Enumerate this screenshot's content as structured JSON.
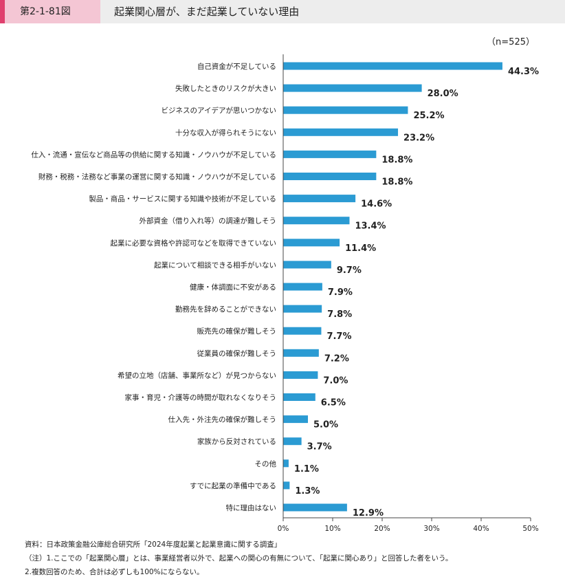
{
  "header": {
    "figure_label": "第2-1-81図",
    "title": "起業関心層が、まだ起業していない理由"
  },
  "sample_size": "（n=525）",
  "chart_data": {
    "type": "bar",
    "orientation": "horizontal",
    "categories": [
      "自己資金が不足している",
      "失敗したときのリスクが大きい",
      "ビジネスのアイデアが思いつかない",
      "十分な収入が得られそうにない",
      "仕入・流通・宣伝など商品等の供給に関する知識・ノウハウが不足している",
      "財務・税務・法務など事業の運営に関する知識・ノウハウが不足している",
      "製品・商品・サービスに関する知識や技術が不足している",
      "外部資金（借り入れ等）の調達が難しそう",
      "起業に必要な資格や許認可などを取得できていない",
      "起業について相談できる相手がいない",
      "健康・体調面に不安がある",
      "勤務先を辞めることができない",
      "販売先の確保が難しそう",
      "従業員の確保が難しそう",
      "希望の立地（店舗、事業所など）が見つからない",
      "家事・育児・介護等の時間が取れなくなりそう",
      "仕入先・外注先の確保が難しそう",
      "家族から反対されている",
      "その他",
      "すでに起業の準備中である",
      "特に理由はない"
    ],
    "values": [
      44.3,
      28.0,
      25.2,
      23.2,
      18.8,
      18.8,
      14.6,
      13.4,
      11.4,
      9.7,
      7.9,
      7.8,
      7.7,
      7.2,
      7.0,
      6.5,
      5.0,
      3.7,
      1.1,
      1.3,
      12.9
    ],
    "value_labels": [
      "44.3%",
      "28.0%",
      "25.2%",
      "23.2%",
      "18.8%",
      "18.8%",
      "14.6%",
      "13.4%",
      "11.4%",
      "9.7%",
      "7.9%",
      "7.8%",
      "7.7%",
      "7.2%",
      "7.0%",
      "6.5%",
      "5.0%",
      "3.7%",
      "1.1%",
      "1.3%",
      "12.9%"
    ],
    "xlim": [
      0,
      50
    ],
    "x_ticks": [
      0,
      10,
      20,
      30,
      40,
      50
    ],
    "x_tick_labels": [
      "0%",
      "10%",
      "20%",
      "30%",
      "40%",
      "50%"
    ],
    "bar_color": "#2b9bd3",
    "grid": false
  },
  "notes": [
    "資料：日本政策金融公庫総合研究所「2024年度起業と起業意識に関する調査」",
    "（注）1.ここでの「起業関心層」とは、事業経営者以外で、起業への関心の有無について、「起業に関心あり」と回答した者をいう。",
    "2.複数回答のため、合計は必ずしも100%にならない。"
  ]
}
